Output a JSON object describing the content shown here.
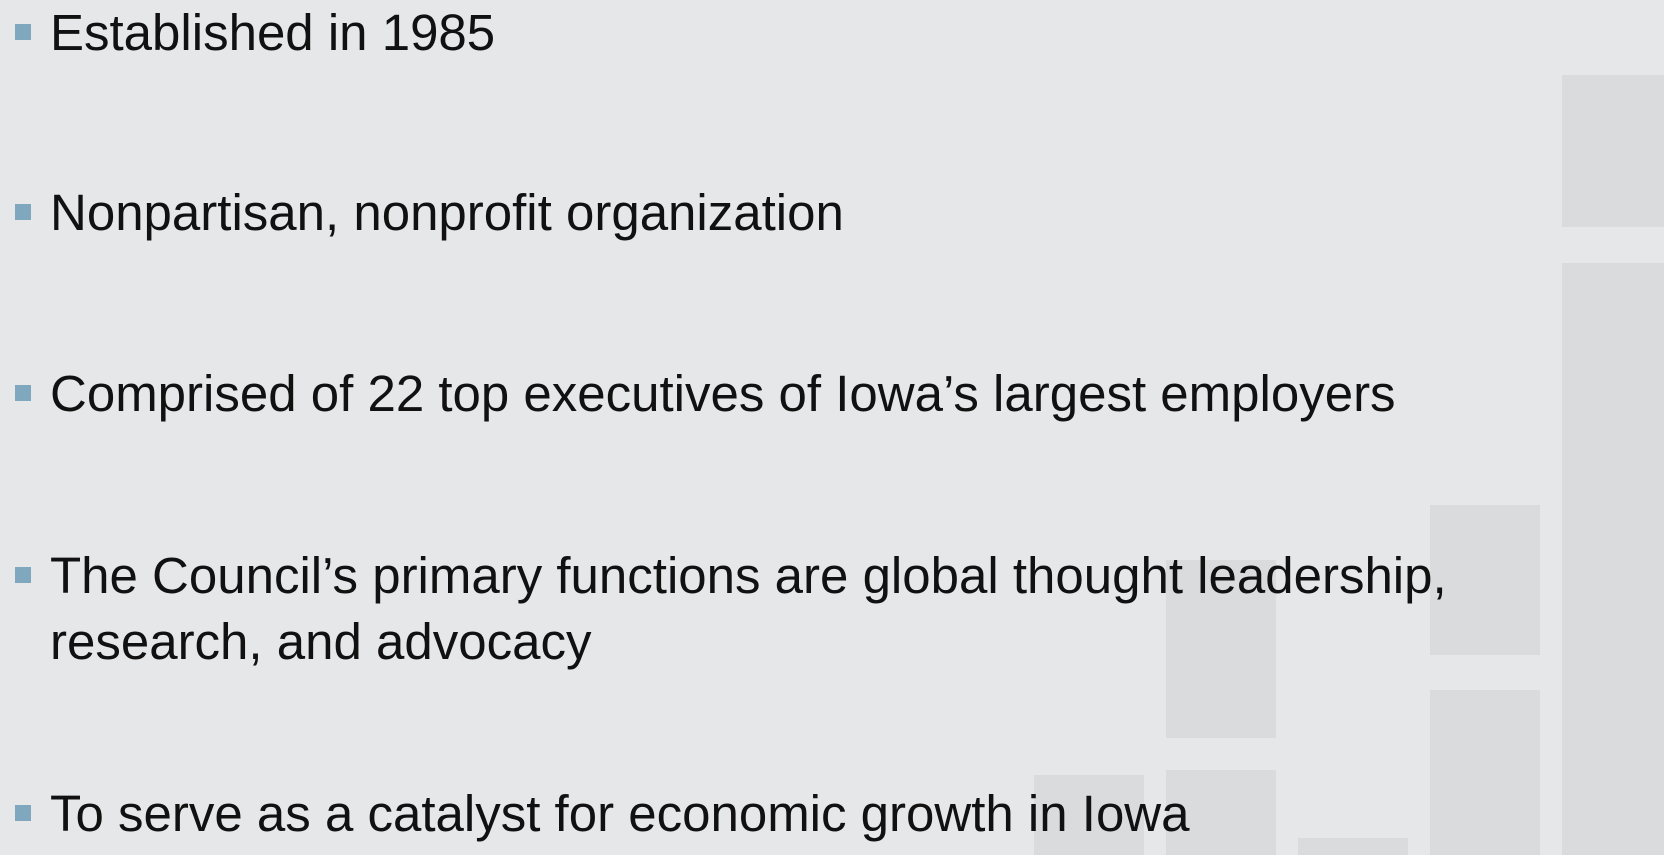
{
  "bullets": [
    "Established in 1985",
    "Nonpartisan, nonprofit organization",
    "Comprised of 22 top executives of Iowa’s largest employers",
    "The Council’s primary functions are global thought leadership, research, and advocacy",
    "To serve as a catalyst for economic growth in Iowa"
  ]
}
